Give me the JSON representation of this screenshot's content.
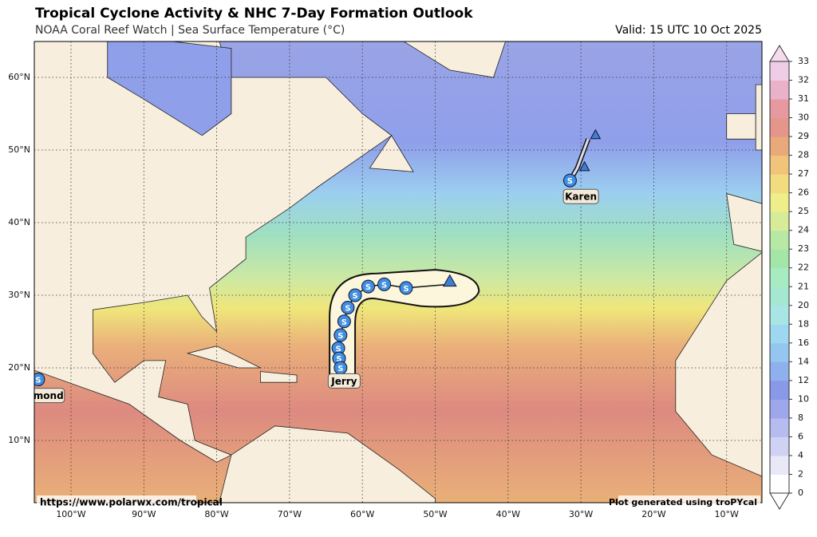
{
  "header": {
    "title": "Tropical Cyclone Activity & NHC 7-Day Formation Outlook",
    "subtitle": "NOAA Coral Reef Watch | Sea Surface Temperature (°C)",
    "valid": "Valid: 15 UTC 10 Oct 2025"
  },
  "map": {
    "lon_labels": [
      "100°W",
      "90°W",
      "80°W",
      "70°W",
      "60°W",
      "50°W",
      "40°W",
      "30°W",
      "20°W",
      "10°W"
    ],
    "lat_labels": [
      "60°N",
      "50°N",
      "40°N",
      "30°N",
      "20°N",
      "10°N"
    ]
  },
  "colorbar": {
    "ticks": [
      0,
      2,
      4,
      6,
      8,
      10,
      12,
      14,
      16,
      18,
      20,
      21,
      22,
      23,
      24,
      25,
      26,
      27,
      28,
      29,
      30,
      31,
      32,
      33
    ]
  },
  "storms": [
    {
      "name": "Jerry",
      "symbol": "S"
    },
    {
      "name": "Karen",
      "symbol": "S"
    },
    {
      "name": "mond",
      "symbol": "S"
    }
  ],
  "footer": {
    "source": "https://www.polarwx.com/tropical",
    "credit": "Plot generated using troPYcal"
  }
}
